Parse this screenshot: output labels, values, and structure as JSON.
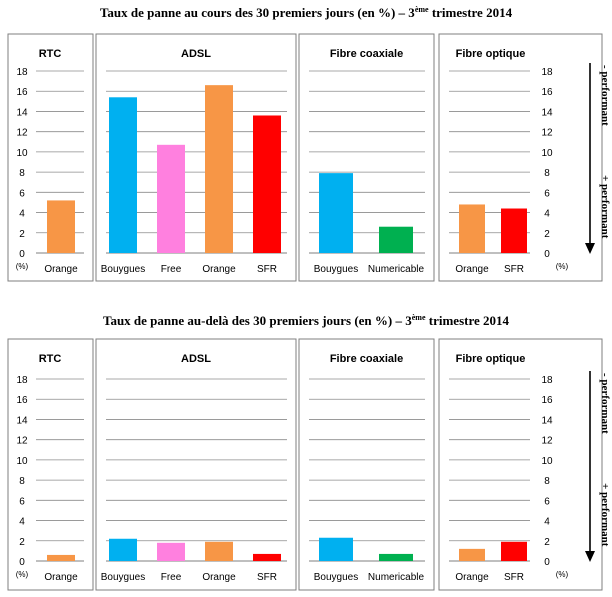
{
  "axis": {
    "ymin": 0,
    "ymax": 18,
    "step": 2,
    "unit": "(%)"
  },
  "side_labels": {
    "top": "- performant",
    "bottom": "+ performant"
  },
  "chart_data": [
    {
      "type": "bar",
      "title_main": "Taux de panne au cours des 30 premiers jours (en %) – 3",
      "title_sup": "ème",
      "title_end": " trimestre 2014",
      "ylim": [
        0,
        18
      ],
      "panels": [
        {
          "name": "RTC",
          "categories": [
            "Orange"
          ],
          "values": [
            5.2
          ],
          "colors": [
            "#f79646"
          ]
        },
        {
          "name": "ADSL",
          "categories": [
            "Bouygues",
            "Free",
            "Orange",
            "SFR"
          ],
          "values": [
            15.4,
            10.7,
            16.6,
            13.6
          ],
          "colors": [
            "#00b0f0",
            "#ff80df",
            "#f79646",
            "#ff0000"
          ]
        },
        {
          "name": "Fibre coaxiale",
          "categories": [
            "Bouygues",
            "Numericable"
          ],
          "values": [
            7.9,
            2.6
          ],
          "colors": [
            "#00b0f0",
            "#00b050"
          ]
        },
        {
          "name": "Fibre optique",
          "categories": [
            "Orange",
            "SFR"
          ],
          "values": [
            4.8,
            4.4
          ],
          "colors": [
            "#f79646",
            "#ff0000"
          ]
        }
      ]
    },
    {
      "type": "bar",
      "title_main": "Taux de panne au-delà des 30 premiers jours (en %) – 3",
      "title_sup": "ème",
      "title_end": " trimestre 2014",
      "ylim": [
        0,
        18
      ],
      "panels": [
        {
          "name": "RTC",
          "categories": [
            "Orange"
          ],
          "values": [
            0.6
          ],
          "colors": [
            "#f79646"
          ]
        },
        {
          "name": "ADSL",
          "categories": [
            "Bouygues",
            "Free",
            "Orange",
            "SFR"
          ],
          "values": [
            2.2,
            1.8,
            1.9,
            0.7
          ],
          "colors": [
            "#00b0f0",
            "#ff80df",
            "#f79646",
            "#ff0000"
          ]
        },
        {
          "name": "Fibre coaxiale",
          "categories": [
            "Bouygues",
            "Numericable"
          ],
          "values": [
            2.3,
            0.7
          ],
          "colors": [
            "#00b0f0",
            "#00b050"
          ]
        },
        {
          "name": "Fibre optique",
          "categories": [
            "Orange",
            "SFR"
          ],
          "values": [
            1.2,
            1.9
          ],
          "colors": [
            "#f79646",
            "#ff0000"
          ]
        }
      ]
    }
  ]
}
